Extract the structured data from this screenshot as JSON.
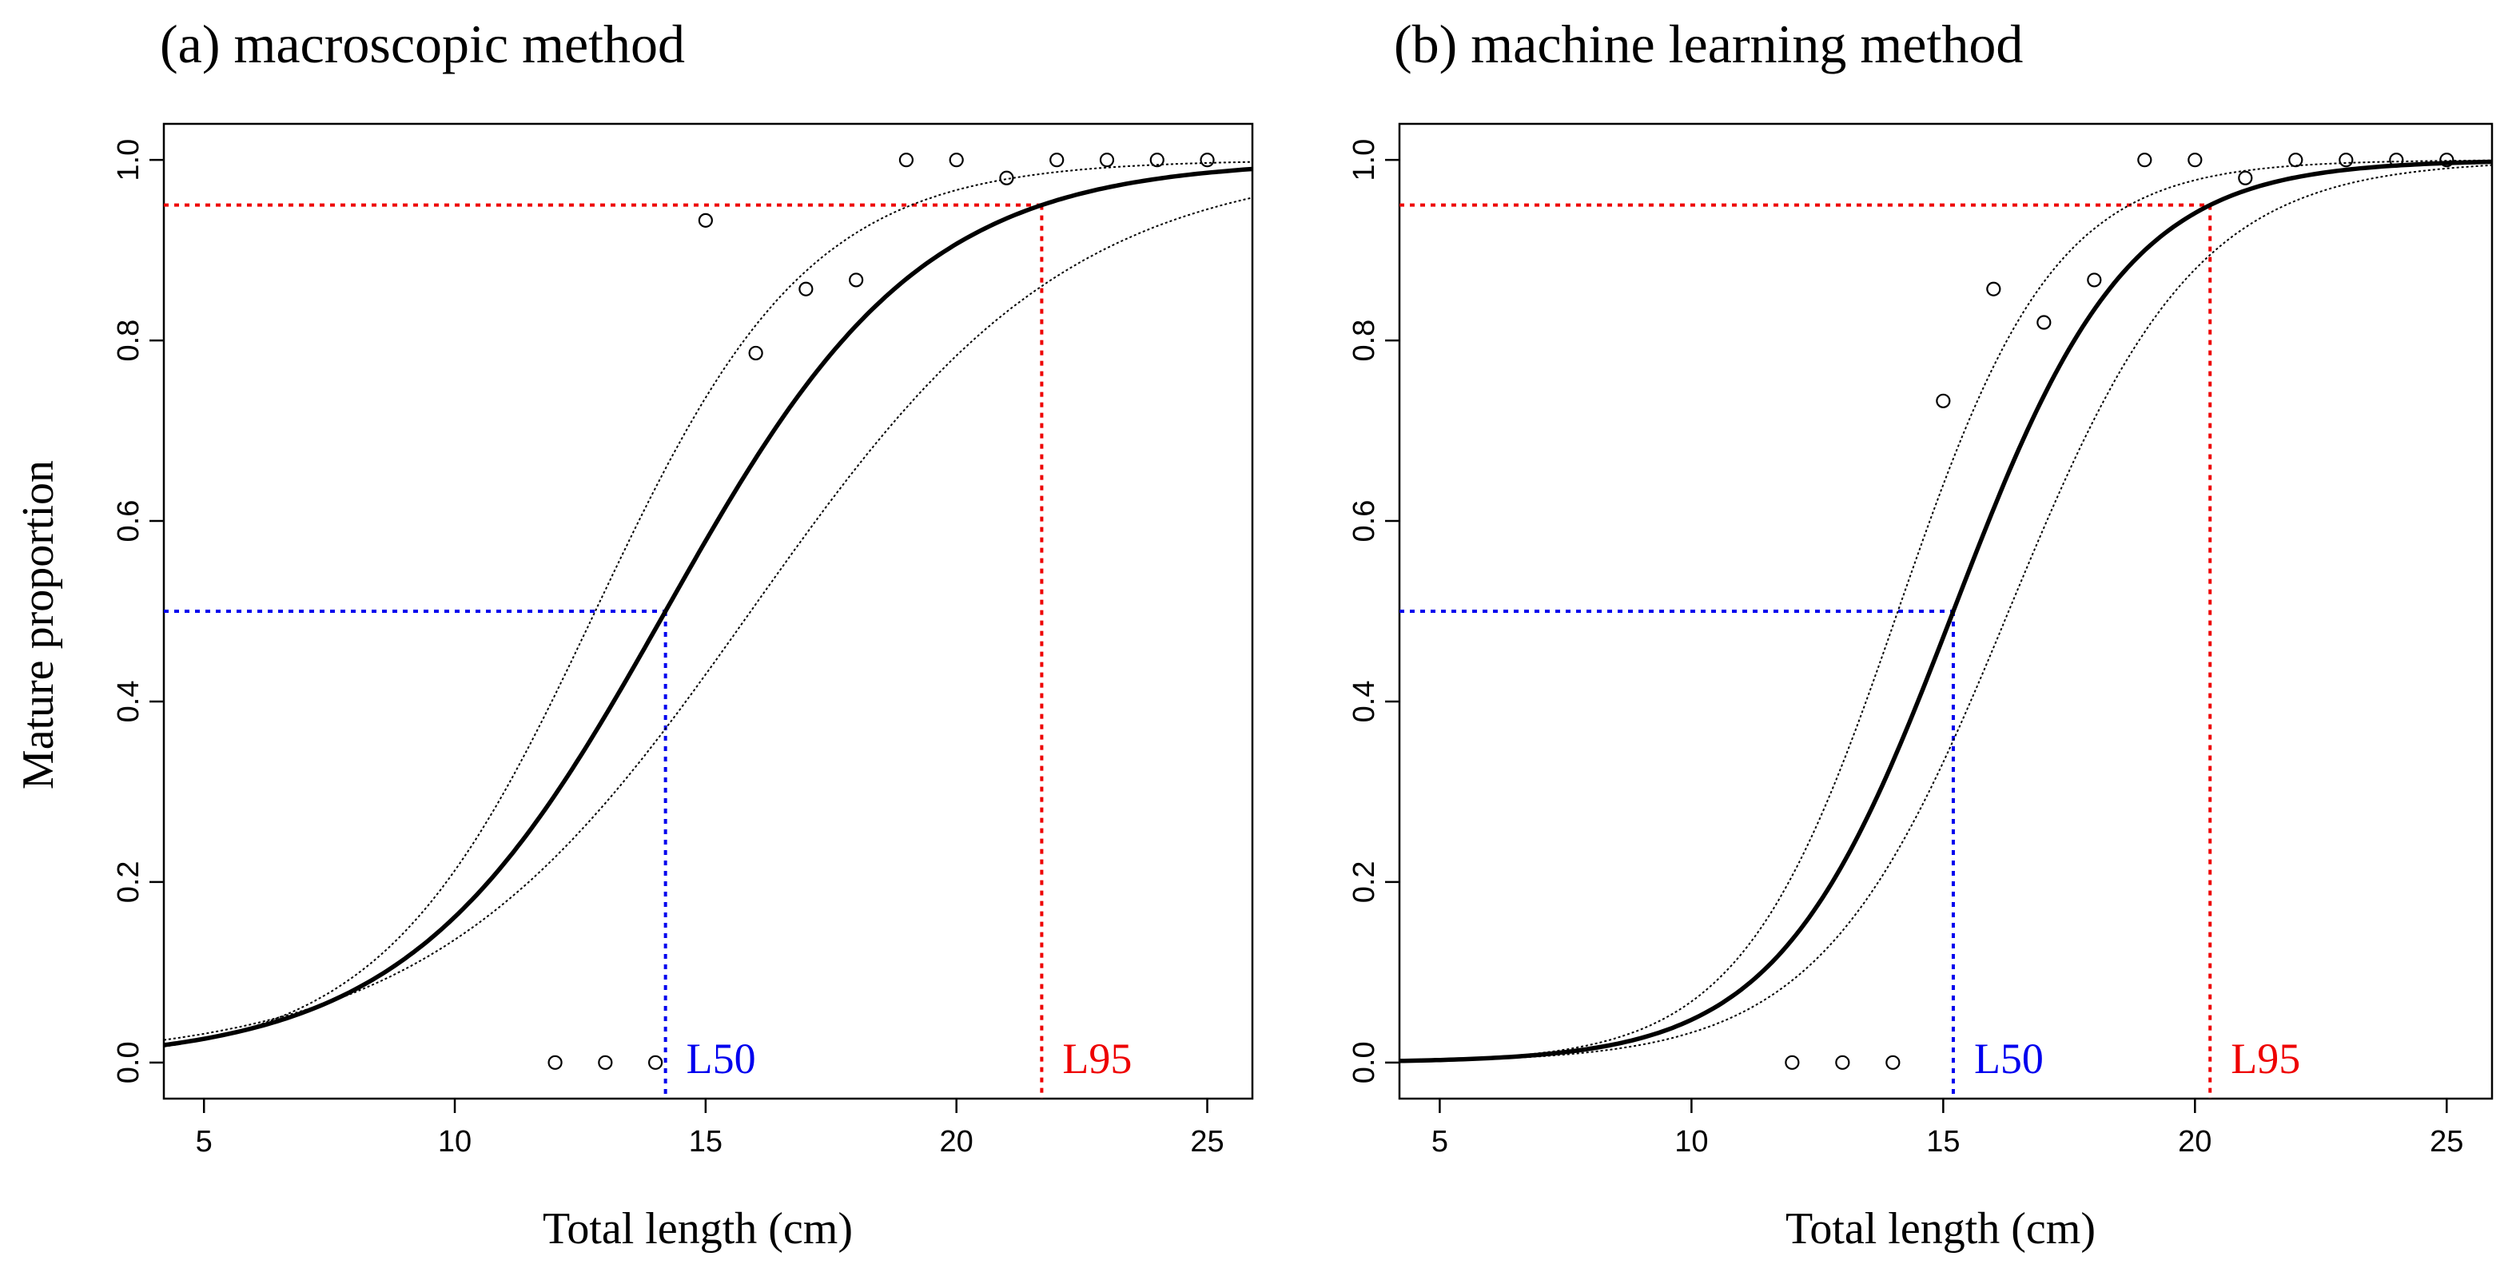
{
  "y_axis_title": "Mature proportion",
  "colors": {
    "l50": "#0000ee",
    "l95": "#ee0000",
    "line": "#000000"
  },
  "chart_data": [
    {
      "type": "line",
      "title": "(a) macroscopic method",
      "xlabel": "Total length (cm)",
      "ylabel": "Mature proportion",
      "xlim": [
        4.2,
        25.9
      ],
      "ylim": [
        -0.04,
        1.04
      ],
      "xticks": [
        5,
        10,
        15,
        20,
        25
      ],
      "yticks": [
        0.0,
        0.2,
        0.4,
        0.6,
        0.8,
        1.0
      ],
      "logistic": {
        "L50": 14.2,
        "L95": 21.7
      },
      "ci_lower": {
        "L50": 15.9,
        "L95": 25.3
      },
      "ci_upper": {
        "L50": 12.8,
        "L95": 19.1
      },
      "L50": 14.2,
      "L95": 21.7,
      "L50_label": "L50",
      "L95_label": "L95",
      "observed": {
        "x": [
          12,
          13,
          14,
          15,
          16,
          17,
          18,
          19,
          20,
          21,
          22,
          23,
          24,
          25
        ],
        "y": [
          0.0,
          0.0,
          0.0,
          0.933,
          0.786,
          0.857,
          0.867,
          1.0,
          1.0,
          0.98,
          1.0,
          1.0,
          1.0,
          1.0
        ]
      }
    },
    {
      "type": "line",
      "title": "(b) machine learning method",
      "xlabel": "Total length (cm)",
      "ylabel": "Mature proportion",
      "xlim": [
        4.2,
        25.9
      ],
      "ylim": [
        -0.04,
        1.04
      ],
      "xticks": [
        5,
        10,
        15,
        20,
        25
      ],
      "yticks": [
        0.0,
        0.2,
        0.4,
        0.6,
        0.8,
        1.0
      ],
      "logistic": {
        "L50": 15.2,
        "L95": 20.3
      },
      "ci_lower": {
        "L50": 16.3,
        "L95": 21.8
      },
      "ci_upper": {
        "L50": 14.1,
        "L95": 18.7
      },
      "L50": 15.2,
      "L95": 20.3,
      "L50_label": "L50",
      "L95_label": "L95",
      "observed": {
        "x": [
          12,
          13,
          14,
          15,
          16,
          17,
          18,
          19,
          20,
          21,
          22,
          23,
          24,
          25
        ],
        "y": [
          0.0,
          0.0,
          0.0,
          0.733,
          0.857,
          0.82,
          0.867,
          1.0,
          1.0,
          0.98,
          1.0,
          1.0,
          1.0,
          1.0
        ]
      }
    }
  ]
}
